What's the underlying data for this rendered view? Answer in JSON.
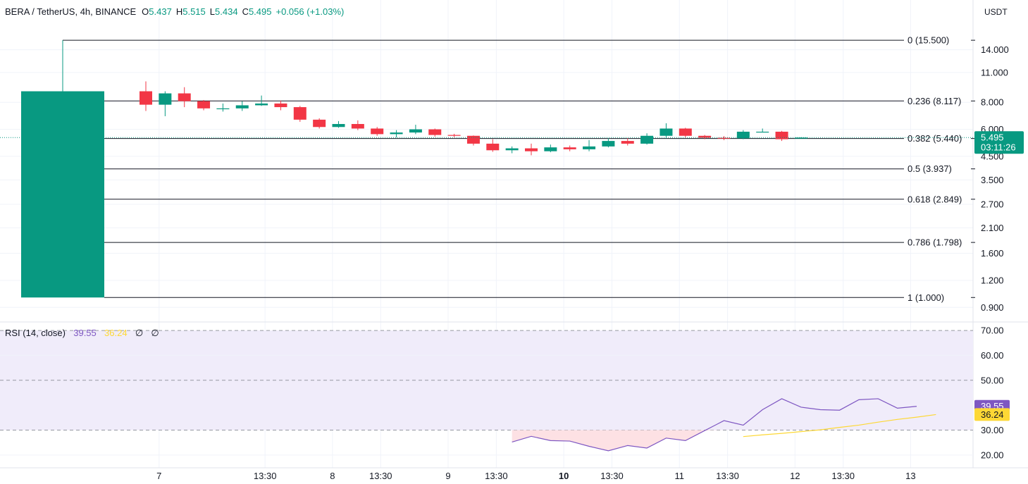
{
  "header": {
    "symbol": "BERA / TetherUS, 4h, BINANCE",
    "o_label": "O",
    "o_value": "5.437",
    "h_label": "H",
    "h_value": "5.515",
    "l_label": "L",
    "l_value": "5.434",
    "c_label": "C",
    "c_value": "5.495",
    "change": "+0.056 (+1.03%)",
    "currency": "USDT"
  },
  "rsi_legend": {
    "label": "RSI (14, close)",
    "rsi_value": "39.55",
    "ma_value": "36.24",
    "na1": "∅",
    "na2": "∅"
  },
  "price_tag": {
    "price": "5.495",
    "countdown": "03:11:26"
  },
  "rsi_tags": {
    "rsi": "39.55",
    "ma": "36.24"
  },
  "colors": {
    "up": "#089981",
    "down": "#f23645",
    "rsi_line": "#7e57c2",
    "rsi_ma": "#fdd835",
    "rsi_band": "#f0ecfa",
    "rsi_oversold": "#fde1e4",
    "grid": "#f0f3fa",
    "fib_line": "#131722"
  },
  "chart_data": [
    {
      "type": "candlestick",
      "title": "BERA / TetherUS, 4h, BINANCE",
      "y_scale": "log",
      "ylim": [
        0.8,
        19
      ],
      "y_ticks": [
        "14.000",
        "11.000",
        "8.000",
        "6.000",
        "4.500",
        "3.500",
        "2.700",
        "2.100",
        "1.600",
        "1.200",
        "0.900"
      ],
      "x_ticks": [
        {
          "label": "7",
          "bold": false,
          "index": 5
        },
        {
          "label": "13:30",
          "bold": false,
          "index": 10.5
        },
        {
          "label": "8",
          "bold": false,
          "index": 14
        },
        {
          "label": "13:30",
          "bold": false,
          "index": 16.5
        },
        {
          "label": "9",
          "bold": false,
          "index": 20
        },
        {
          "label": "13:30",
          "bold": false,
          "index": 22.5
        },
        {
          "label": "10",
          "bold": true,
          "index": 26
        },
        {
          "label": "13:30",
          "bold": false,
          "index": 28.5
        },
        {
          "label": "11",
          "bold": false,
          "index": 32
        },
        {
          "label": "13:30",
          "bold": false,
          "index": 34.5
        },
        {
          "label": "12",
          "bold": false,
          "index": 38
        },
        {
          "label": "13:30",
          "bold": false,
          "index": 40.5
        },
        {
          "label": "13",
          "bold": false,
          "index": 44
        }
      ],
      "candles": [
        {
          "o": 1.0,
          "h": 15.5,
          "l": 1.0,
          "c": 9.0
        },
        {
          "o": 9.0,
          "h": 10.0,
          "l": 7.3,
          "c": 7.8
        },
        {
          "o": 7.8,
          "h": 9.0,
          "l": 6.9,
          "c": 8.8
        },
        {
          "o": 8.8,
          "h": 9.4,
          "l": 7.6,
          "c": 8.1
        },
        {
          "o": 8.1,
          "h": 8.2,
          "l": 7.35,
          "c": 7.5
        },
        {
          "o": 7.5,
          "h": 7.9,
          "l": 7.25,
          "c": 7.5
        },
        {
          "o": 7.5,
          "h": 8.1,
          "l": 7.3,
          "c": 7.75
        },
        {
          "o": 7.75,
          "h": 8.6,
          "l": 7.7,
          "c": 7.9
        },
        {
          "o": 7.9,
          "h": 8.15,
          "l": 7.35,
          "c": 7.6
        },
        {
          "o": 7.6,
          "h": 7.7,
          "l": 6.5,
          "c": 6.65
        },
        {
          "o": 6.65,
          "h": 6.75,
          "l": 6.05,
          "c": 6.15
        },
        {
          "o": 6.15,
          "h": 6.55,
          "l": 6.1,
          "c": 6.35
        },
        {
          "o": 6.35,
          "h": 6.6,
          "l": 5.95,
          "c": 6.05
        },
        {
          "o": 6.05,
          "h": 6.15,
          "l": 5.6,
          "c": 5.7
        },
        {
          "o": 5.7,
          "h": 5.95,
          "l": 5.5,
          "c": 5.8
        },
        {
          "o": 5.8,
          "h": 6.3,
          "l": 5.7,
          "c": 6.0
        },
        {
          "o": 6.0,
          "h": 6.05,
          "l": 5.55,
          "c": 5.65
        },
        {
          "o": 5.65,
          "h": 5.72,
          "l": 5.52,
          "c": 5.6
        },
        {
          "o": 5.6,
          "h": 5.62,
          "l": 5.05,
          "c": 5.15
        },
        {
          "o": 5.15,
          "h": 5.4,
          "l": 4.72,
          "c": 4.8
        },
        {
          "o": 4.8,
          "h": 5.0,
          "l": 4.65,
          "c": 4.9
        },
        {
          "o": 4.9,
          "h": 5.15,
          "l": 4.55,
          "c": 4.75
        },
        {
          "o": 4.75,
          "h": 5.1,
          "l": 4.7,
          "c": 4.95
        },
        {
          "o": 4.95,
          "h": 5.05,
          "l": 4.75,
          "c": 4.85
        },
        {
          "o": 4.85,
          "h": 5.35,
          "l": 4.75,
          "c": 5.0
        },
        {
          "o": 5.0,
          "h": 5.45,
          "l": 4.95,
          "c": 5.3
        },
        {
          "o": 5.3,
          "h": 5.45,
          "l": 5.05,
          "c": 5.15
        },
        {
          "o": 5.15,
          "h": 5.75,
          "l": 5.1,
          "c": 5.6
        },
        {
          "o": 5.6,
          "h": 6.4,
          "l": 5.45,
          "c": 6.05
        },
        {
          "o": 6.05,
          "h": 6.1,
          "l": 5.5,
          "c": 5.6
        },
        {
          "o": 5.6,
          "h": 5.65,
          "l": 5.4,
          "c": 5.48
        },
        {
          "o": 5.48,
          "h": 5.58,
          "l": 5.35,
          "c": 5.45
        },
        {
          "o": 5.45,
          "h": 5.95,
          "l": 5.4,
          "c": 5.85
        },
        {
          "o": 5.85,
          "h": 6.05,
          "l": 5.8,
          "c": 5.85
        },
        {
          "o": 5.85,
          "h": 5.9,
          "l": 5.3,
          "c": 5.4
        },
        {
          "o": 5.437,
          "h": 5.515,
          "l": 5.434,
          "c": 5.495
        }
      ],
      "fib_levels": [
        {
          "ratio": 0,
          "price": 15.5,
          "label": "0 (15.500)"
        },
        {
          "ratio": 0.236,
          "price": 8.117,
          "label": "0.236 (8.117)"
        },
        {
          "ratio": 0.382,
          "price": 5.44,
          "label": "0.382 (5.440)"
        },
        {
          "ratio": 0.5,
          "price": 3.937,
          "label": "0.5 (3.937)"
        },
        {
          "ratio": 0.618,
          "price": 2.849,
          "label": "0.618 (2.849)"
        },
        {
          "ratio": 0.786,
          "price": 1.798,
          "label": "0.786 (1.798)"
        },
        {
          "ratio": 1,
          "price": 1.0,
          "label": "1 (1.000)"
        }
      ],
      "last_price": 5.495
    },
    {
      "type": "line",
      "title": "RSI (14, close)",
      "ylim": [
        16,
        72
      ],
      "y_ticks": [
        "70.00",
        "60.00",
        "50.00",
        "30.00",
        "20.00"
      ],
      "bands": {
        "upper": 70,
        "middle": 50,
        "lower": 30
      },
      "series": [
        {
          "name": "RSI",
          "start_index": 20,
          "values": [
            25.2,
            27.5,
            25.8,
            25.6,
            23.5,
            21.7,
            23.8,
            22.8,
            26.8,
            25.8,
            29.8,
            33.8,
            32.0,
            38.2,
            42.6,
            39.2,
            38.2,
            38.0,
            42.2,
            42.6,
            38.8,
            39.55
          ]
        },
        {
          "name": "RSI-based MA",
          "start_index": 32,
          "values": [
            27.4,
            28.1,
            28.7,
            29.4,
            30.1,
            31.1,
            32.0,
            33.2,
            34.3,
            35.2,
            36.24
          ]
        }
      ]
    }
  ]
}
